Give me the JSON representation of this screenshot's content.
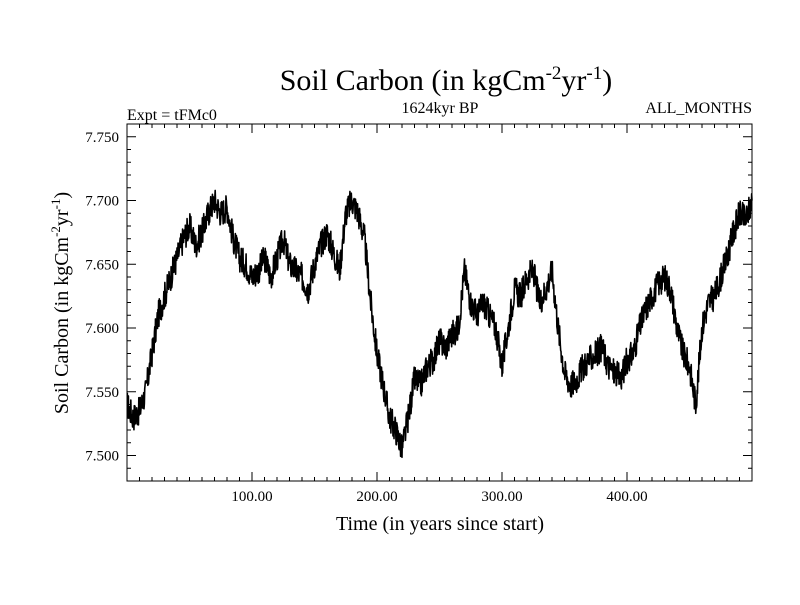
{
  "chart_data": {
    "type": "line",
    "title": "Soil Carbon (in kgCm",
    "title_sup1": "-2",
    "title_mid": "yr",
    "title_sup2": "-1",
    "title_end": ")",
    "subtitle": "1624kyr BP",
    "left_note": "Expt = tFMc0",
    "right_note": "ALL_MONTHS",
    "xlabel": "Time (in years since start)",
    "ylabel": "Soil Carbon (in kgCm",
    "ylabel_sup1": "-2",
    "ylabel_mid": "yr",
    "ylabel_sup2": "-1",
    "ylabel_end": ")",
    "xlim": [
      0,
      500
    ],
    "ylim": [
      7.48,
      7.76
    ],
    "xticks_major": [
      100,
      200,
      300,
      400
    ],
    "xtick_labels": [
      "100.00",
      "200.00",
      "300.00",
      "400.00"
    ],
    "yticks_major": [
      7.5,
      7.55,
      7.6,
      7.65,
      7.7,
      7.75
    ],
    "ytick_labels": [
      "7.500",
      "7.550",
      "7.600",
      "7.650",
      "7.700",
      "7.750"
    ],
    "grid": false,
    "line_color": "#000000",
    "series": [
      {
        "name": "",
        "x": [
          0,
          5,
          10,
          15,
          20,
          25,
          30,
          35,
          40,
          45,
          50,
          55,
          60,
          65,
          70,
          75,
          80,
          85,
          90,
          95,
          100,
          105,
          110,
          115,
          120,
          125,
          130,
          135,
          140,
          145,
          150,
          155,
          160,
          165,
          170,
          175,
          180,
          185,
          190,
          195,
          200,
          205,
          210,
          215,
          220,
          225,
          230,
          235,
          240,
          245,
          250,
          255,
          260,
          265,
          270,
          275,
          280,
          285,
          290,
          295,
          300,
          305,
          310,
          315,
          320,
          325,
          330,
          335,
          340,
          345,
          350,
          355,
          360,
          365,
          370,
          375,
          380,
          385,
          390,
          395,
          400,
          405,
          410,
          415,
          420,
          425,
          430,
          435,
          440,
          445,
          450,
          455,
          460,
          465,
          470,
          475,
          480,
          485,
          490,
          495,
          500
        ],
        "y": [
          7.54,
          7.53,
          7.535,
          7.55,
          7.58,
          7.61,
          7.625,
          7.64,
          7.655,
          7.67,
          7.68,
          7.665,
          7.675,
          7.69,
          7.7,
          7.69,
          7.695,
          7.67,
          7.655,
          7.65,
          7.64,
          7.645,
          7.655,
          7.64,
          7.655,
          7.67,
          7.65,
          7.645,
          7.64,
          7.63,
          7.65,
          7.665,
          7.675,
          7.66,
          7.645,
          7.69,
          7.7,
          7.69,
          7.67,
          7.62,
          7.58,
          7.555,
          7.53,
          7.52,
          7.505,
          7.53,
          7.56,
          7.555,
          7.57,
          7.575,
          7.59,
          7.585,
          7.595,
          7.6,
          7.645,
          7.62,
          7.61,
          7.62,
          7.61,
          7.6,
          7.57,
          7.6,
          7.63,
          7.625,
          7.64,
          7.645,
          7.62,
          7.63,
          7.645,
          7.6,
          7.565,
          7.555,
          7.56,
          7.57,
          7.575,
          7.58,
          7.585,
          7.57,
          7.565,
          7.56,
          7.575,
          7.58,
          7.6,
          7.615,
          7.625,
          7.635,
          7.64,
          7.63,
          7.6,
          7.58,
          7.57,
          7.54,
          7.6,
          7.62,
          7.625,
          7.64,
          7.655,
          7.675,
          7.69,
          7.685,
          7.7
        ]
      }
    ]
  }
}
